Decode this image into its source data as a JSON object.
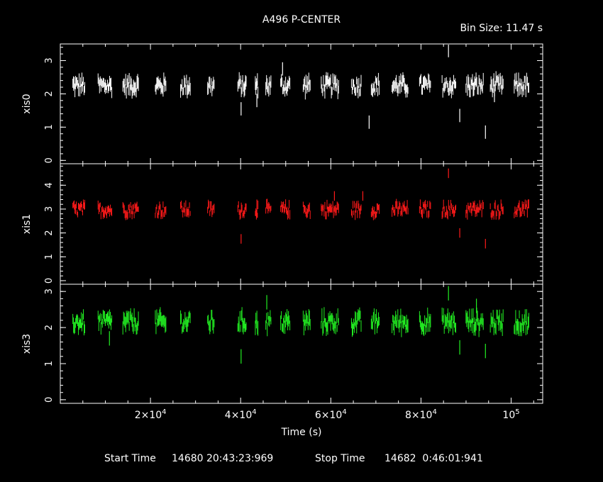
{
  "title": "A496 P-CENTER",
  "bin_size_label": "Bin Size:  11.47  s",
  "footer": {
    "start_label": "Start Time",
    "start_value": "14680 20:43:23:969",
    "stop_label": "Stop Time",
    "stop_value": "14682  0:46:01:941"
  },
  "chart_data": {
    "type": "scatter",
    "xlabel": "Time (s)",
    "xlim": [
      0,
      107000
    ],
    "x_ticks": [
      {
        "value": 20000,
        "mant": "2",
        "exp": "4"
      },
      {
        "value": 40000,
        "mant": "4",
        "exp": "4"
      },
      {
        "value": 60000,
        "mant": "6",
        "exp": "4"
      },
      {
        "value": 80000,
        "mant": "8",
        "exp": "4"
      },
      {
        "value": 100000,
        "mant": "10",
        "exp": "5"
      }
    ],
    "panels": [
      {
        "name": "xis0",
        "ylabel": "xis0",
        "color": "#ffffff",
        "ylim": [
          -0.1,
          3.5
        ],
        "yticks": [
          0,
          1,
          2,
          3
        ],
        "base": 2.25,
        "amp": 0.22,
        "segments": [
          [
            2700,
            5500
          ],
          [
            8300,
            11500
          ],
          [
            13800,
            17400
          ],
          [
            21000,
            23500
          ],
          [
            26600,
            28900
          ],
          [
            32600,
            34200
          ],
          [
            39300,
            41300
          ],
          [
            43200,
            43900
          ],
          [
            45500,
            46800
          ],
          [
            48800,
            51000
          ],
          [
            53800,
            55500
          ],
          [
            57800,
            61800
          ],
          [
            64500,
            66800
          ],
          [
            68900,
            70800
          ],
          [
            73500,
            77200
          ],
          [
            79600,
            82200
          ],
          [
            84600,
            87800
          ],
          [
            89900,
            93900
          ],
          [
            95300,
            98300
          ],
          [
            100600,
            104000
          ]
        ],
        "outliers": [
          [
            40100,
            1.55
          ],
          [
            43600,
            1.8
          ],
          [
            68500,
            1.15
          ],
          [
            86100,
            3.3
          ],
          [
            88600,
            1.35
          ],
          [
            94300,
            0.85
          ],
          [
            49300,
            2.75
          ],
          [
            96300,
            1.95
          ]
        ]
      },
      {
        "name": "xis1",
        "ylabel": "xis1",
        "color": "#ff1a1a",
        "ylim": [
          -0.15,
          4.9
        ],
        "yticks": [
          0,
          1,
          2,
          3,
          4
        ],
        "base": 2.98,
        "amp": 0.25,
        "segments": [
          [
            2700,
            5500
          ],
          [
            8300,
            11500
          ],
          [
            13800,
            17400
          ],
          [
            21000,
            23500
          ],
          [
            26600,
            28900
          ],
          [
            32600,
            34200
          ],
          [
            39300,
            41300
          ],
          [
            43200,
            43900
          ],
          [
            45500,
            46800
          ],
          [
            48800,
            51000
          ],
          [
            53800,
            55500
          ],
          [
            57800,
            61800
          ],
          [
            64500,
            66800
          ],
          [
            68900,
            70800
          ],
          [
            73500,
            77200
          ],
          [
            79600,
            82200
          ],
          [
            84600,
            87800
          ],
          [
            89900,
            93900
          ],
          [
            95300,
            98300
          ],
          [
            100600,
            104000
          ]
        ],
        "outliers": [
          [
            40100,
            1.75
          ],
          [
            60800,
            3.55
          ],
          [
            86100,
            4.5
          ],
          [
            88600,
            2.0
          ],
          [
            94300,
            1.55
          ],
          [
            67100,
            3.55
          ],
          [
            43600,
            3.2
          ]
        ]
      },
      {
        "name": "xis3",
        "ylabel": "xis3",
        "color": "#22ee22",
        "ylim": [
          -0.1,
          3.2
        ],
        "yticks": [
          0,
          1,
          2,
          3
        ],
        "base": 2.15,
        "amp": 0.22,
        "segments": [
          [
            2700,
            5500
          ],
          [
            8300,
            11500
          ],
          [
            13800,
            17400
          ],
          [
            21000,
            23500
          ],
          [
            26600,
            28900
          ],
          [
            32600,
            34200
          ],
          [
            39300,
            41300
          ],
          [
            43200,
            43900
          ],
          [
            45500,
            46800
          ],
          [
            48800,
            51000
          ],
          [
            53800,
            55500
          ],
          [
            57800,
            61800
          ],
          [
            64500,
            66800
          ],
          [
            68900,
            70800
          ],
          [
            73500,
            77200
          ],
          [
            79600,
            82200
          ],
          [
            84600,
            87800
          ],
          [
            89900,
            93900
          ],
          [
            95300,
            98300
          ],
          [
            100600,
            104000
          ]
        ],
        "outliers": [
          [
            40100,
            1.2
          ],
          [
            45800,
            2.7
          ],
          [
            86100,
            2.95
          ],
          [
            88600,
            1.45
          ],
          [
            94300,
            1.35
          ],
          [
            92300,
            2.6
          ],
          [
            10900,
            1.7
          ]
        ]
      }
    ]
  }
}
